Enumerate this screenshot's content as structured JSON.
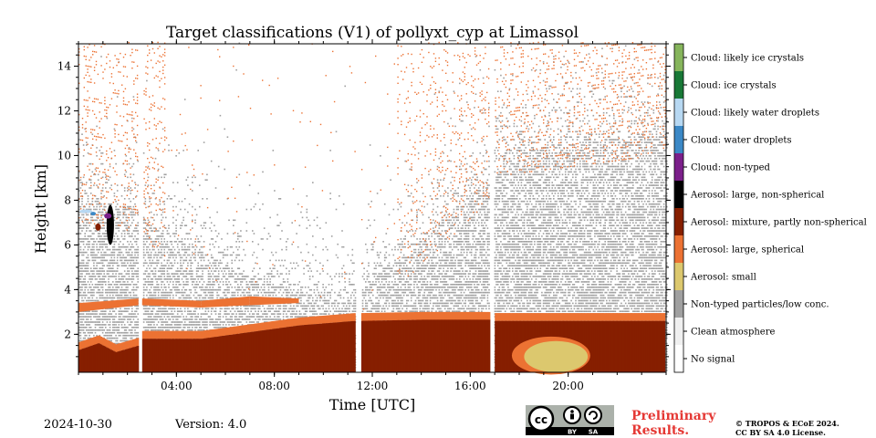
{
  "chart_data": {
    "type": "heatmap",
    "title": "Target classifications (V1) of pollyxt_cyp at Limassol",
    "xlabel": "Time [UTC]",
    "ylabel": "Height [km]",
    "x_ticks": [
      "04:00",
      "08:00",
      "12:00",
      "16:00",
      "20:00"
    ],
    "x_tick_hours": [
      4,
      8,
      12,
      16,
      20
    ],
    "xlim_hours": [
      0,
      24
    ],
    "y_ticks": [
      2,
      4,
      6,
      8,
      10,
      12,
      14
    ],
    "ylim": [
      0.3,
      15.0
    ],
    "data_gaps_hours": [
      [
        2.45,
        2.6
      ],
      [
        11.3,
        11.55
      ],
      [
        16.8,
        16.98
      ]
    ],
    "colorbar": {
      "classes": [
        {
          "label": "No signal",
          "color": "#ffffff"
        },
        {
          "label": "Clean atmosphere",
          "color": "#f0f0f0"
        },
        {
          "label": "Non-typed particles/low conc.",
          "color": "#a0a0a0"
        },
        {
          "label": "Aerosol: small",
          "color": "#dcc86e"
        },
        {
          "label": "Aerosol: large, spherical",
          "color": "#ec7233"
        },
        {
          "label": "Aerosol: mixture, partly non-spherical",
          "color": "#861f00"
        },
        {
          "label": "Aerosol: large, non-spherical",
          "color": "#000000"
        },
        {
          "label": "Cloud: non-typed",
          "color": "#7b1f8a"
        },
        {
          "label": "Cloud: water droplets",
          "color": "#3b88c6"
        },
        {
          "label": "Cloud: likely water droplets",
          "color": "#b7d8f2"
        },
        {
          "label": "Cloud: ice crystals",
          "color": "#187836"
        },
        {
          "label": "Cloud: likely ice crystals",
          "color": "#86b55c"
        }
      ]
    },
    "layers_km": {
      "mixture_top": [
        [
          0,
          1.3
        ],
        [
          0.8,
          1.6
        ],
        [
          1.5,
          1.2
        ],
        [
          2.45,
          1.5
        ],
        [
          2.6,
          1.8
        ],
        [
          5,
          1.8
        ],
        [
          7,
          2.1
        ],
        [
          9,
          2.4
        ],
        [
          11.3,
          2.6
        ],
        [
          11.55,
          2.6
        ],
        [
          14,
          2.65
        ],
        [
          16.8,
          2.65
        ],
        [
          16.98,
          2.6
        ],
        [
          20,
          2.6
        ],
        [
          24,
          2.6
        ]
      ],
      "spherical_band": [
        [
          0,
          3.0,
          3.4
        ],
        [
          2.45,
          3.3,
          3.6
        ],
        [
          2.6,
          3.3,
          3.6
        ],
        [
          5,
          3.2,
          3.5
        ],
        [
          7,
          3.3,
          3.7
        ],
        [
          9,
          3.4,
          3.6
        ]
      ],
      "grey_top": [
        [
          0,
          8.0
        ],
        [
          2.45,
          7.5
        ],
        [
          2.6,
          7.0
        ],
        [
          5,
          5.5
        ],
        [
          7,
          4.5
        ],
        [
          10,
          3.6
        ],
        [
          11.3,
          3.4
        ],
        [
          11.55,
          4.0
        ],
        [
          14,
          6.0
        ],
        [
          16.8,
          9.0
        ],
        [
          16.98,
          10.0
        ],
        [
          24,
          11.0
        ]
      ]
    }
  },
  "footer": {
    "date": "2024-10-30",
    "version": "Version: 4.0",
    "preliminary": "Preliminary\nResults.",
    "copyright": "© TROPOS & ECoE 2024.\nCC BY SA 4.0 License.",
    "license_badge": {
      "by": "BY",
      "sa": "SA"
    }
  }
}
